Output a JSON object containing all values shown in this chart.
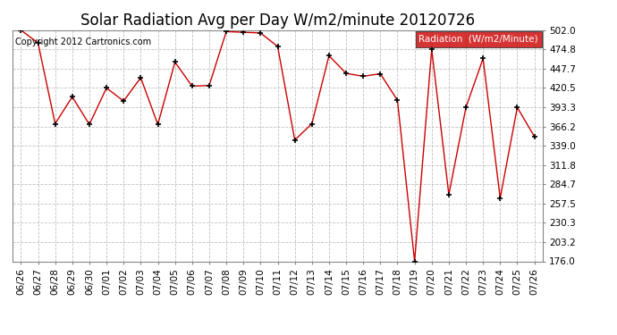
{
  "title": "Solar Radiation Avg per Day W/m2/minute 20120726",
  "copyright_text": "Copyright 2012 Cartronics.com",
  "legend_label": "Radiation  (W/m2/Minute)",
  "dates": [
    "06/26",
    "06/27",
    "06/28",
    "06/29",
    "06/30",
    "07/01",
    "07/02",
    "07/03",
    "07/04",
    "07/05",
    "07/06",
    "07/07",
    "07/08",
    "07/09",
    "07/10",
    "07/11",
    "07/12",
    "07/13",
    "07/14",
    "07/15",
    "07/16",
    "07/17",
    "07/18",
    "07/19",
    "07/20",
    "07/21",
    "07/22",
    "07/23",
    "07/24",
    "07/25",
    "07/26"
  ],
  "values": [
    502.0,
    484.0,
    370.0,
    408.0,
    369.0,
    420.5,
    402.0,
    435.0,
    369.0,
    457.0,
    423.0,
    424.0,
    500.0,
    499.0,
    498.0,
    479.0,
    347.0,
    370.0,
    466.0,
    441.0,
    437.0,
    440.5,
    403.0,
    176.0,
    475.0,
    270.0,
    393.0,
    462.0,
    265.0,
    393.0,
    352.0
  ],
  "ylim_min": 176.0,
  "ylim_max": 502.0,
  "ytick_values": [
    176.0,
    203.2,
    230.3,
    257.5,
    284.7,
    311.8,
    339.0,
    366.2,
    393.3,
    420.5,
    447.7,
    474.8,
    502.0
  ],
  "line_color": "#cc0000",
  "marker": "+",
  "marker_color": "#000000",
  "bg_color": "#ffffff",
  "grid_color": "#c0c0c0",
  "legend_bg": "#cc0000",
  "legend_text_color": "#ffffff",
  "title_fontsize": 12,
  "tick_fontsize": 7.5,
  "copyright_fontsize": 7,
  "legend_fontsize": 7.5
}
